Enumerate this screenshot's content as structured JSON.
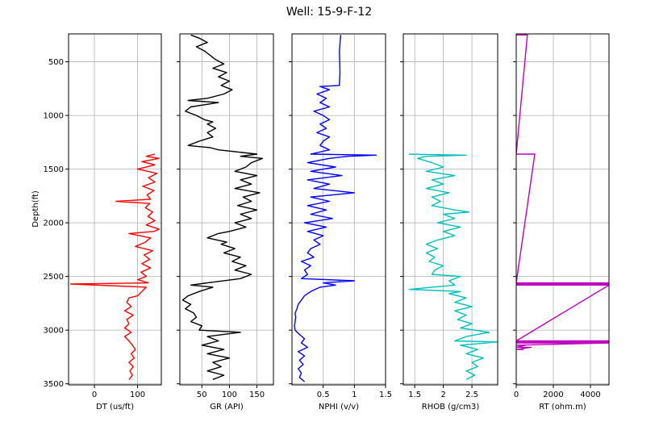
{
  "chart_data": {
    "title": "Well: 15-9-F-12",
    "type": "line",
    "ylabel": "Depth(ft)",
    "ylim": [
      3510,
      240
    ],
    "yticks": [
      500,
      1000,
      1500,
      2000,
      2500,
      3000,
      3500
    ],
    "grid": true,
    "tracks": [
      {
        "id": "dt",
        "xlabel": "DT (us/ft)",
        "xlim": [
          -60,
          155
        ],
        "xticks": [
          0,
          100
        ],
        "color": "#ff0000",
        "series": {
          "depth": [
            1360,
            1380,
            1400,
            1430,
            1460,
            1500,
            1540,
            1580,
            1620,
            1660,
            1700,
            1740,
            1780,
            1800,
            1820,
            1860,
            1900,
            1940,
            1980,
            2020,
            2060,
            2080,
            2100,
            2140,
            2180,
            2220,
            2260,
            2300,
            2340,
            2380,
            2420,
            2460,
            2500,
            2530,
            2560,
            2570,
            2600,
            2640,
            2680,
            2700,
            2740,
            2780,
            2820,
            2860,
            2900,
            2940,
            2980,
            3020,
            3060,
            3100,
            3140,
            3180,
            3220,
            3260,
            3300,
            3340,
            3380,
            3420,
            3460
          ],
          "value": [
            140,
            120,
            150,
            110,
            140,
            100,
            145,
            125,
            140,
            112,
            138,
            122,
            130,
            50,
            128,
            118,
            135,
            124,
            140,
            120,
            150,
            138,
            80,
            130,
            118,
            95,
            135,
            115,
            128,
            110,
            130,
            108,
            120,
            100,
            125,
            -55,
            120,
            110,
            100,
            80,
            75,
            85,
            70,
            90,
            75,
            80,
            70,
            85,
            70,
            80,
            88,
            95,
            85,
            92,
            80,
            90,
            82,
            88,
            80
          ]
        }
      },
      {
        "id": "gr",
        "xlabel": "GR (API)",
        "xlim": [
          10,
          180
        ],
        "xticks": [
          50,
          100,
          150
        ],
        "color": "#000000",
        "series": {
          "depth": [
            250,
            280,
            320,
            360,
            400,
            440,
            480,
            520,
            560,
            600,
            640,
            680,
            720,
            760,
            800,
            840,
            860,
            880,
            920,
            960,
            1000,
            1040,
            1060,
            1080,
            1120,
            1160,
            1200,
            1240,
            1280,
            1300,
            1320,
            1360,
            1380,
            1400,
            1440,
            1480,
            1520,
            1560,
            1600,
            1640,
            1680,
            1720,
            1760,
            1800,
            1840,
            1880,
            1920,
            1960,
            2000,
            2040,
            2080,
            2100,
            2140,
            2180,
            2200,
            2240,
            2280,
            2320,
            2360,
            2400,
            2440,
            2480,
            2520,
            2560,
            2580,
            2600,
            2640,
            2680,
            2720,
            2760,
            2800,
            2840,
            2880,
            2920,
            2960,
            3000,
            3020,
            3060,
            3100,
            3140,
            3180,
            3220,
            3260,
            3300,
            3340,
            3380,
            3420,
            3460
          ],
          "value": [
            30,
            45,
            60,
            40,
            55,
            65,
            75,
            90,
            70,
            95,
            80,
            100,
            85,
            105,
            90,
            60,
            25,
            80,
            30,
            20,
            40,
            55,
            70,
            60,
            75,
            60,
            70,
            45,
            25,
            65,
            80,
            150,
            120,
            160,
            140,
            130,
            110,
            150,
            120,
            140,
            110,
            155,
            125,
            140,
            115,
            150,
            120,
            140,
            110,
            130,
            100,
            80,
            60,
            95,
            85,
            110,
            90,
            120,
            105,
            130,
            110,
            140,
            120,
            60,
            30,
            70,
            45,
            25,
            15,
            30,
            20,
            35,
            40,
            30,
            50,
            45,
            120,
            60,
            80,
            50,
            90,
            60,
            100,
            70,
            85,
            60,
            90,
            70
          ]
        }
      },
      {
        "id": "nphi",
        "xlabel": "NPHI (v/v)",
        "xlim": [
          0,
          1.5
        ],
        "xticks": [
          0.5,
          1.0,
          1.5
        ],
        "color": "#0000ff",
        "series": {
          "depth": [
            250,
            400,
            600,
            720,
            730,
            760,
            800,
            840,
            880,
            920,
            960,
            1000,
            1040,
            1080,
            1120,
            1160,
            1200,
            1240,
            1280,
            1320,
            1360,
            1370,
            1380,
            1400,
            1440,
            1480,
            1520,
            1560,
            1600,
            1640,
            1680,
            1720,
            1760,
            1800,
            1840,
            1880,
            1920,
            1960,
            2000,
            2040,
            2080,
            2120,
            2160,
            2200,
            2240,
            2280,
            2320,
            2360,
            2400,
            2440,
            2480,
            2520,
            2540,
            2560,
            2580,
            2600,
            2640,
            2680,
            2720,
            2760,
            2800,
            2840,
            2880,
            2920,
            2960,
            3000,
            3040,
            3080,
            3120,
            3160,
            3200,
            3240,
            3280,
            3320,
            3360,
            3400,
            3440,
            3480
          ],
          "value": [
            0.78,
            0.76,
            0.77,
            0.76,
            0.45,
            0.6,
            0.4,
            0.55,
            0.45,
            0.6,
            0.35,
            0.5,
            0.6,
            0.45,
            0.55,
            0.4,
            0.6,
            0.5,
            0.45,
            0.6,
            0.3,
            1.35,
            0.9,
            0.6,
            0.25,
            0.7,
            0.3,
            0.8,
            0.25,
            0.6,
            0.35,
            1.0,
            0.3,
            0.6,
            0.25,
            0.55,
            0.3,
            0.65,
            0.2,
            0.55,
            0.25,
            0.5,
            0.35,
            0.45,
            0.3,
            0.25,
            0.35,
            0.15,
            0.3,
            0.2,
            0.25,
            0.15,
            1.0,
            0.5,
            0.7,
            0.45,
            0.3,
            0.2,
            0.15,
            0.1,
            0.08,
            0.05,
            0.06,
            0.05,
            0.04,
            0.05,
            0.12,
            0.2,
            0.15,
            0.25,
            0.1,
            0.2,
            0.12,
            0.18,
            0.1,
            0.15,
            0.12,
            0.2
          ]
        }
      },
      {
        "id": "rhob",
        "xlabel": "RHOB (g/cm3)",
        "xlim": [
          1.3,
          2.95
        ],
        "xticks": [
          1.5,
          2.0,
          2.5
        ],
        "color": "#00bfbf",
        "series": {
          "depth": [
            1360,
            1370,
            1380,
            1400,
            1440,
            1480,
            1520,
            1560,
            1600,
            1640,
            1680,
            1720,
            1760,
            1800,
            1840,
            1880,
            1900,
            1920,
            1960,
            2000,
            2040,
            2080,
            2120,
            2160,
            2200,
            2240,
            2280,
            2320,
            2360,
            2400,
            2440,
            2480,
            2500,
            2540,
            2580,
            2620,
            2640,
            2660,
            2700,
            2740,
            2780,
            2820,
            2860,
            2900,
            2940,
            2980,
            3020,
            3060,
            3100,
            3110,
            3140,
            3180,
            3220,
            3260,
            3300,
            3340,
            3380,
            3420,
            3460
          ],
          "value": [
            1.4,
            2.4,
            1.7,
            1.55,
            1.8,
            2.0,
            1.7,
            2.2,
            1.8,
            2.0,
            1.7,
            2.1,
            1.8,
            1.95,
            1.8,
            2.2,
            2.45,
            2.0,
            2.2,
            1.9,
            2.3,
            2.0,
            2.2,
            1.9,
            1.7,
            1.9,
            1.7,
            1.85,
            1.75,
            2.0,
            1.85,
            1.8,
            2.3,
            2.1,
            2.2,
            1.4,
            2.3,
            2.1,
            2.4,
            2.2,
            2.5,
            2.2,
            2.4,
            2.25,
            2.5,
            2.3,
            2.8,
            2.4,
            2.2,
            2.95,
            2.3,
            2.6,
            2.4,
            2.7,
            2.5,
            2.6,
            2.4,
            2.55,
            2.4
          ]
        }
      },
      {
        "id": "rt",
        "xlabel": "RT (ohm.m)",
        "xlim": [
          0,
          5000
        ],
        "xticks": [
          0,
          2000,
          4000
        ],
        "color": "#bf00bf",
        "series": {
          "depth": [
            250,
            250,
            1360,
            1360,
            2560,
            2560,
            2570,
            2570,
            2580,
            2580,
            3100,
            3100,
            3110,
            3110,
            3120,
            3120,
            3140,
            3140,
            3160,
            3160,
            3180,
            3180
          ],
          "value": [
            0,
            600,
            0,
            1000,
            0,
            5000,
            0,
            5000,
            0,
            5000,
            0,
            5000,
            0,
            5000,
            0,
            5000,
            0,
            500,
            0,
            800,
            0,
            400
          ]
        }
      }
    ]
  }
}
